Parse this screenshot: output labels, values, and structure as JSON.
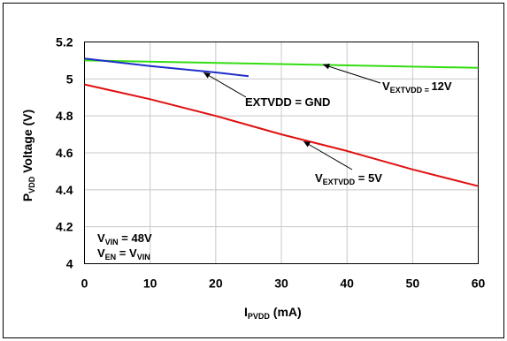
{
  "chart_data": {
    "type": "line",
    "xlabel": {
      "main": "I",
      "sub": "PVDD",
      "rest": " (mA)"
    },
    "ylabel": {
      "main": "P",
      "sub": "VDD",
      "rest": " Voltage (V)"
    },
    "xlim": [
      0,
      60
    ],
    "ylim": [
      4,
      5.2
    ],
    "x_ticks": [
      0,
      10,
      20,
      30,
      40,
      50,
      60
    ],
    "y_ticks": [
      4,
      4.2,
      4.4,
      4.6,
      4.8,
      5,
      5.2
    ],
    "y_tick_labels": [
      "4",
      "4.2",
      "4.4",
      "4.6",
      "4.8",
      "5",
      "5.2"
    ],
    "grid": true,
    "series": [
      {
        "name": "V_EXTVDD = 12V",
        "color": "#33dd11",
        "x": [
          0,
          60
        ],
        "y": [
          5.1,
          5.06
        ]
      },
      {
        "name": "EXTVDD = GND",
        "color": "#1f2ecc",
        "x": [
          0,
          10,
          20,
          25
        ],
        "y": [
          5.11,
          5.07,
          5.035,
          5.015
        ]
      },
      {
        "name": "V_EXTVDD = 5V",
        "color": "#e01010",
        "x": [
          0,
          10,
          20,
          30,
          40,
          50,
          60
        ],
        "y": [
          4.97,
          4.89,
          4.8,
          4.7,
          4.61,
          4.51,
          4.42
        ]
      }
    ],
    "annotations": [
      {
        "id": "ann-12v",
        "parts": [
          {
            "t": "V"
          },
          {
            "t": "EXTVDD = ",
            "sub": true
          },
          {
            "t": "12V"
          }
        ]
      },
      {
        "id": "ann-gnd",
        "parts": [
          {
            "t": "EXTVDD = GND"
          }
        ]
      },
      {
        "id": "ann-5v",
        "parts": [
          {
            "t": "V"
          },
          {
            "t": "EXTVDD",
            "sub": true
          },
          {
            "t": " = 5V"
          }
        ]
      },
      {
        "id": "ann-vin",
        "parts": [
          {
            "t": "V"
          },
          {
            "t": "VIN",
            "sub": true
          },
          {
            "t": " = 48V"
          }
        ]
      },
      {
        "id": "ann-ven",
        "parts": [
          {
            "t": "V"
          },
          {
            "t": "EN",
            "sub": true
          },
          {
            "t": " = V"
          },
          {
            "t": "VIN",
            "sub": true
          }
        ]
      }
    ]
  }
}
